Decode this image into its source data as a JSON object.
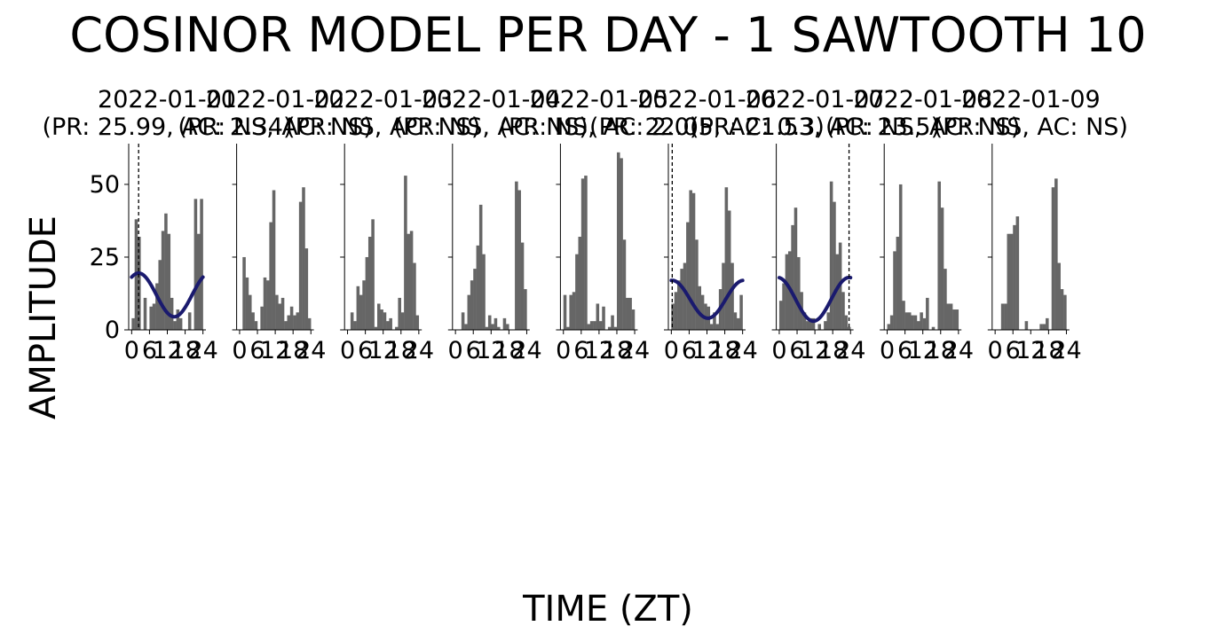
{
  "figure": {
    "title": "COSINOR MODEL PER DAY - 1 SAWTOOTH 10",
    "xlabel": "TIME (ZT)",
    "ylabel": "AMPLITUDE"
  },
  "colors": {
    "bar": "#666666",
    "fit_curve": "#1a1a6e",
    "acrophase_line": "#000000",
    "axis": "#000000",
    "background": "#ffffff"
  },
  "chart_data": [
    {
      "type": "bar",
      "date": "2022-01-01",
      "subtitle": "(PR: 25.99, AC: 2.34)",
      "x": [
        0,
        1,
        2,
        3,
        4,
        5,
        6,
        7,
        8,
        9,
        10,
        11,
        12,
        13,
        14,
        15,
        16,
        17,
        18,
        19,
        20,
        21,
        22,
        23
      ],
      "values": [
        4,
        38,
        32,
        0,
        11,
        0,
        8,
        9,
        16,
        24,
        34,
        40,
        33,
        11,
        3,
        7,
        4,
        0,
        0,
        6,
        0,
        45,
        33,
        45
      ],
      "fit": {
        "mesor": 12,
        "amplitude": 7.5,
        "acrophase": 2.34
      },
      "xticks": [
        "0",
        "6",
        "12",
        "18",
        "24"
      ],
      "xlim": [
        -1,
        25
      ],
      "yticks": [
        "0",
        "25",
        "50"
      ],
      "ylim": [
        0,
        64
      ]
    },
    {
      "type": "bar",
      "date": "2022-01-02",
      "subtitle": "(PR: NS, AC: NS)",
      "x": [
        0,
        1,
        2,
        3,
        4,
        5,
        6,
        7,
        8,
        9,
        10,
        11,
        12,
        13,
        14,
        15,
        16,
        17,
        18,
        19,
        20,
        21,
        22,
        23
      ],
      "values": [
        0,
        25,
        18,
        12,
        6,
        3,
        0,
        8,
        18,
        17,
        37,
        48,
        12,
        9,
        11,
        3,
        5,
        8,
        5,
        6,
        44,
        49,
        28,
        4
      ],
      "fit": null,
      "xticks": [
        "0",
        "6",
        "12",
        "18",
        "24"
      ],
      "xlim": [
        -1,
        25
      ],
      "yticks": [],
      "ylim": [
        0,
        64
      ]
    },
    {
      "type": "bar",
      "date": "2022-01-03",
      "subtitle": "(PR: NS, AC: NS)",
      "x": [
        0,
        1,
        2,
        3,
        4,
        5,
        6,
        7,
        8,
        9,
        10,
        11,
        12,
        13,
        14,
        15,
        16,
        17,
        18,
        19,
        20,
        21,
        22,
        23
      ],
      "values": [
        0,
        6,
        3,
        15,
        12,
        17,
        25,
        32,
        38,
        1,
        9,
        7,
        6,
        3,
        4,
        0,
        1,
        11,
        6,
        53,
        33,
        34,
        23,
        5
      ],
      "fit": null,
      "xticks": [
        "0",
        "6",
        "12",
        "18",
        "24"
      ],
      "xlim": [
        -1,
        25
      ],
      "yticks": [],
      "ylim": [
        0,
        64
      ]
    },
    {
      "type": "bar",
      "date": "2022-01-04",
      "subtitle": "(PR: NS, AC: NS)",
      "x": [
        0,
        1,
        2,
        3,
        4,
        5,
        6,
        7,
        8,
        9,
        10,
        11,
        12,
        13,
        14,
        15,
        16,
        17,
        18,
        19,
        20,
        21,
        22,
        23
      ],
      "values": [
        0,
        0,
        6,
        2,
        12,
        17,
        21,
        29,
        43,
        26,
        1,
        5,
        2,
        4,
        1,
        0,
        4,
        2,
        0,
        0,
        51,
        48,
        30,
        14
      ],
      "fit": null,
      "xticks": [
        "0",
        "6",
        "12",
        "18",
        "24"
      ],
      "xlim": [
        -1,
        25
      ],
      "yticks": [],
      "ylim": [
        0,
        64
      ]
    },
    {
      "type": "bar",
      "date": "2022-01-05",
      "subtitle": "(PR: NS, AC: 2.0)",
      "x": [
        0,
        1,
        2,
        3,
        4,
        5,
        6,
        7,
        8,
        9,
        10,
        11,
        12,
        13,
        14,
        15,
        16,
        17,
        18,
        19,
        20,
        21,
        22,
        23
      ],
      "values": [
        12,
        1,
        12,
        13,
        26,
        32,
        52,
        53,
        2,
        3,
        3,
        9,
        3,
        8,
        0,
        1,
        5,
        1,
        61,
        59,
        31,
        11,
        11,
        7
      ],
      "fit": null,
      "xticks": [
        "0",
        "6",
        "12",
        "18",
        "24"
      ],
      "xlim": [
        -1,
        25
      ],
      "yticks": [],
      "ylim": [
        0,
        64
      ]
    },
    {
      "type": "bar",
      "date": "2022-01-06",
      "subtitle": "(PR: 22.05, AC: 0.3)",
      "x": [
        0,
        1,
        2,
        3,
        4,
        5,
        6,
        7,
        8,
        9,
        10,
        11,
        12,
        13,
        14,
        15,
        16,
        17,
        18,
        19,
        20,
        21,
        22,
        23
      ],
      "values": [
        9,
        13,
        17,
        21,
        23,
        37,
        48,
        47,
        31,
        15,
        12,
        9,
        8,
        2,
        6,
        2,
        14,
        23,
        49,
        41,
        23,
        6,
        4,
        12
      ],
      "fit": {
        "mesor": 10.5,
        "amplitude": 6.5,
        "acrophase": 0.3
      },
      "xticks": [
        "0",
        "6",
        "12",
        "18",
        "24"
      ],
      "xlim": [
        -1,
        25
      ],
      "yticks": [],
      "ylim": [
        0,
        64
      ]
    },
    {
      "type": "bar",
      "date": "2022-01-07",
      "subtitle": "(PR: 21.53, AC: 23.5)",
      "x": [
        0,
        1,
        2,
        3,
        4,
        5,
        6,
        7,
        8,
        9,
        10,
        11,
        12,
        13,
        14,
        15,
        16,
        17,
        18,
        19,
        20,
        21,
        22,
        23
      ],
      "values": [
        10,
        16,
        26,
        27,
        36,
        42,
        25,
        13,
        6,
        3,
        4,
        4,
        0,
        2,
        0,
        3,
        6,
        51,
        44,
        26,
        30,
        13,
        5,
        1
      ],
      "fit": {
        "mesor": 10.5,
        "amplitude": 7.5,
        "acrophase": 23.5
      },
      "xticks": [
        "0",
        "6",
        "12",
        "18",
        "24"
      ],
      "xlim": [
        -1,
        25
      ],
      "yticks": [],
      "ylim": [
        0,
        64
      ]
    },
    {
      "type": "bar",
      "date": "2022-01-08",
      "subtitle": "(PR: NS, AC: NS)",
      "x": [
        0,
        1,
        2,
        3,
        4,
        5,
        6,
        7,
        8,
        9,
        10,
        11,
        12,
        13,
        14,
        15,
        16,
        17,
        18,
        19,
        20,
        21,
        22,
        23
      ],
      "values": [
        2,
        5,
        27,
        32,
        50,
        10,
        6,
        6,
        5,
        5,
        3,
        6,
        4,
        11,
        0,
        1,
        0,
        51,
        42,
        21,
        9,
        9,
        7,
        7
      ],
      "fit": null,
      "xticks": [
        "0",
        "6",
        "12",
        "18",
        "24"
      ],
      "xlim": [
        -1,
        25
      ],
      "yticks": [],
      "ylim": [
        0,
        64
      ]
    },
    {
      "type": "bar",
      "date": "2022-01-09",
      "subtitle": "(PR: NS, AC: NS)",
      "x": [
        0,
        1,
        2,
        3,
        4,
        5,
        6,
        7,
        8,
        9,
        10,
        11,
        12,
        13,
        14,
        15,
        16,
        17,
        18,
        19,
        20,
        21,
        22,
        23
      ],
      "values": [
        0,
        0,
        9,
        9,
        33,
        33,
        36,
        39,
        0,
        0,
        3,
        0,
        0,
        0,
        0,
        2,
        2,
        4,
        0,
        49,
        52,
        23,
        14,
        12
      ],
      "fit": null,
      "xticks": [
        "0",
        "6",
        "12",
        "18",
        "24"
      ],
      "xlim": [
        -1,
        25
      ],
      "yticks": [],
      "ylim": [
        0,
        64
      ]
    }
  ]
}
